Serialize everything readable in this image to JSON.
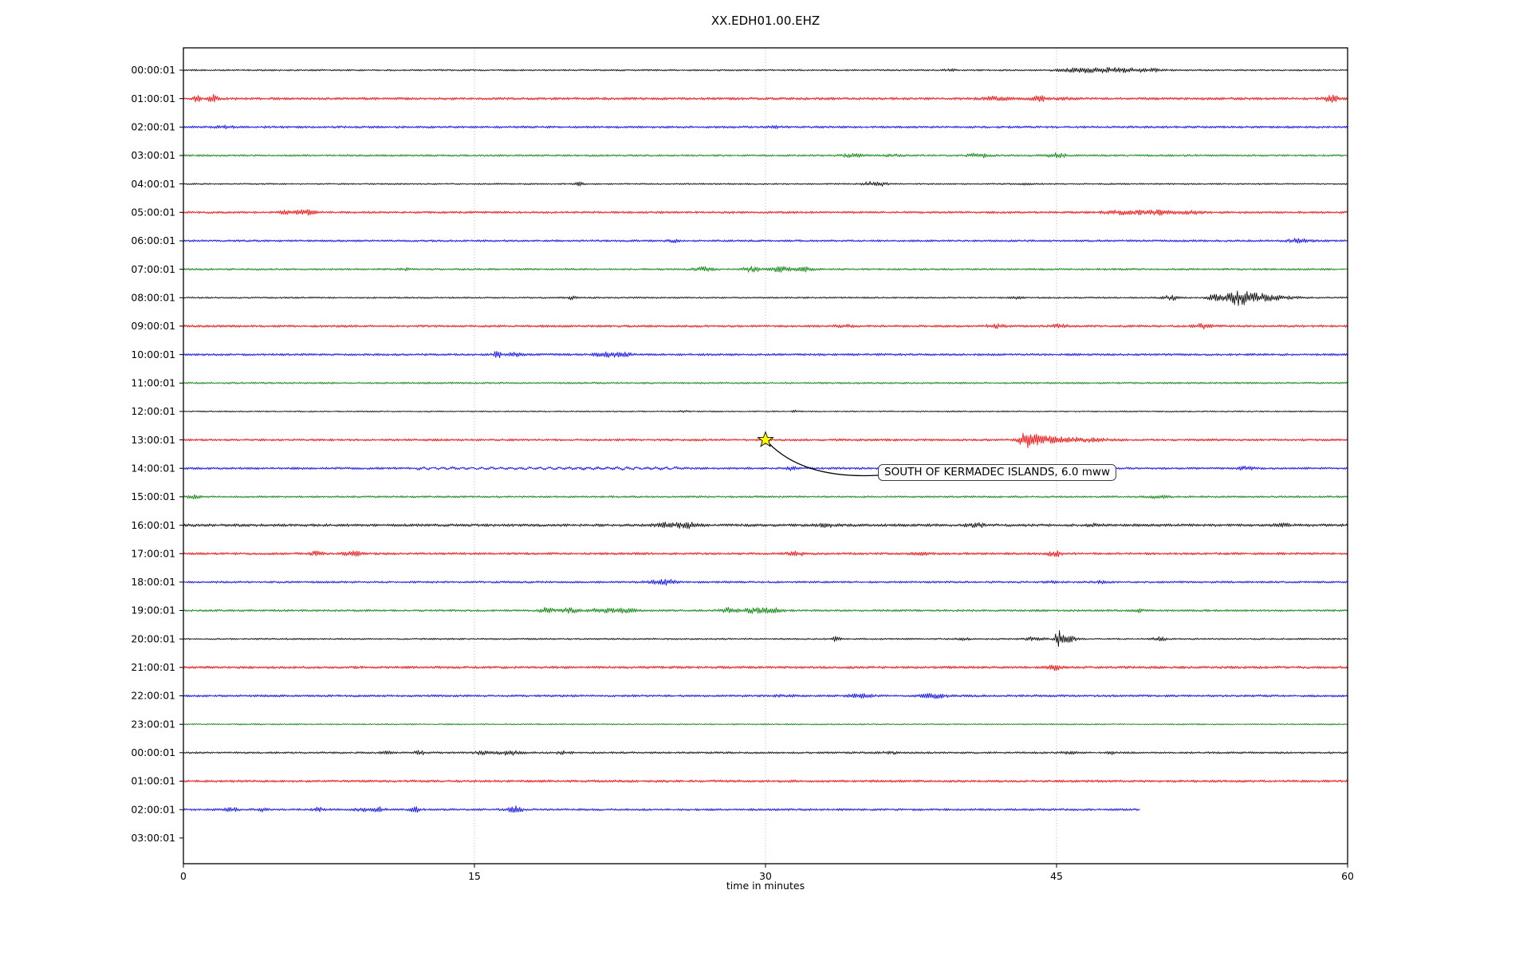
{
  "chart_data": {
    "type": "line",
    "subtype": "seismogram-dayplot",
    "title": "XX.EDH01.00.EHZ",
    "xlabel": "time in minutes",
    "x_range": [
      0,
      60
    ],
    "x_ticks": [
      0,
      15,
      30,
      45,
      60
    ],
    "grid_minutes": [
      15,
      30,
      45
    ],
    "grid_style": "dotted",
    "legend": "none",
    "y_tick_labels": [
      "00:00:01",
      "01:00:01",
      "02:00:01",
      "03:00:01",
      "04:00:01",
      "05:00:01",
      "06:00:01",
      "07:00:01",
      "08:00:01",
      "09:00:01",
      "10:00:01",
      "11:00:01",
      "12:00:01",
      "13:00:01",
      "14:00:01",
      "15:00:01",
      "16:00:01",
      "17:00:01",
      "18:00:01",
      "19:00:01",
      "20:00:01",
      "21:00:01",
      "22:00:01",
      "23:00:01",
      "00:00:01",
      "01:00:01",
      "02:00:01",
      "03:00:01"
    ],
    "colors": {
      "cycle": [
        "#000000",
        "#ff0000",
        "#0000ff",
        "#008000"
      ],
      "grid": "#aaaaaa",
      "frame": "#000000",
      "star_fill": "#ffff00",
      "star_edge": "#000000",
      "connector": "#000000"
    },
    "annotation": {
      "text": "SOUTH OF KERMADEC ISLANDS, 6.0 mww",
      "magnitude": "6.0 mww",
      "row_label": "13:00:01",
      "minute": 30
    },
    "rows": [
      {
        "label": "00:00:01",
        "color": "#000000",
        "base_amp": 1.1,
        "end_min": 60,
        "events": [
          [
            39.5,
            0.2,
            1.2
          ],
          [
            46.2,
            0.8,
            2.2
          ],
          [
            47.6,
            0.7,
            2.0
          ],
          [
            48.9,
            0.6,
            1.8
          ],
          [
            50.0,
            0.4,
            1.3
          ]
        ]
      },
      {
        "label": "01:00:01",
        "color": "#ff0000",
        "base_amp": 1.7,
        "end_min": 60,
        "events": [
          [
            0.7,
            0.12,
            4.5
          ],
          [
            1.5,
            0.15,
            4.5
          ],
          [
            41.8,
            0.5,
            1.8
          ],
          [
            44.1,
            0.25,
            3.2
          ],
          [
            45.3,
            0.2,
            1.5
          ],
          [
            59.2,
            0.25,
            3.5
          ]
        ]
      },
      {
        "label": "02:00:01",
        "color": "#0000ff",
        "base_amp": 1.5,
        "end_min": 60,
        "events": [
          [
            2.2,
            0.4,
            1.2
          ],
          [
            30.5,
            0.3,
            0.8
          ]
        ]
      },
      {
        "label": "03:00:01",
        "color": "#008000",
        "base_amp": 1.3,
        "end_min": 60,
        "events": [
          [
            34.5,
            0.4,
            2.2
          ],
          [
            36.5,
            0.3,
            1.2
          ],
          [
            41.0,
            0.35,
            2.6
          ],
          [
            45.0,
            0.4,
            2.6
          ]
        ]
      },
      {
        "label": "04:00:01",
        "color": "#000000",
        "base_amp": 1.0,
        "end_min": 60,
        "events": [
          [
            20.4,
            0.15,
            2.2
          ],
          [
            35.3,
            0.25,
            2.4
          ],
          [
            36.0,
            0.2,
            2.4
          ],
          [
            43.5,
            0.2,
            1.0
          ]
        ]
      },
      {
        "label": "05:00:01",
        "color": "#ff0000",
        "base_amp": 1.5,
        "end_min": 60,
        "events": [
          [
            5.2,
            0.2,
            1.4
          ],
          [
            6.3,
            0.4,
            2.6
          ],
          [
            48.6,
            0.8,
            2.0
          ],
          [
            50.3,
            0.6,
            2.2
          ],
          [
            52.0,
            0.4,
            1.6
          ]
        ]
      },
      {
        "label": "06:00:01",
        "color": "#0000ff",
        "base_amp": 1.4,
        "end_min": 60,
        "events": [
          [
            25.3,
            0.25,
            1.2
          ],
          [
            57.5,
            0.35,
            2.6
          ]
        ]
      },
      {
        "label": "07:00:01",
        "color": "#008000",
        "base_amp": 1.3,
        "end_min": 60,
        "events": [
          [
            11.5,
            0.2,
            1.2
          ],
          [
            26.8,
            0.35,
            2.2
          ],
          [
            29.3,
            0.3,
            3.0
          ],
          [
            30.8,
            0.35,
            3.0
          ],
          [
            32.0,
            0.3,
            2.2
          ]
        ]
      },
      {
        "label": "08:00:01",
        "color": "#000000",
        "base_amp": 1.1,
        "end_min": 60,
        "events": [
          [
            20.0,
            0.15,
            2.2
          ],
          [
            43.0,
            0.2,
            1.2
          ],
          [
            50.9,
            0.3,
            2.6
          ],
          [
            53.1,
            0.25,
            3.4
          ],
          [
            54.3,
            0.45,
            7.5
          ],
          [
            55.2,
            0.6,
            4.0
          ],
          [
            56.3,
            0.8,
            2.0
          ]
        ]
      },
      {
        "label": "09:00:01",
        "color": "#ff0000",
        "base_amp": 1.5,
        "end_min": 60,
        "events": [
          [
            34.0,
            0.3,
            1.3
          ],
          [
            41.8,
            0.3,
            2.2
          ],
          [
            45.2,
            0.3,
            2.2
          ],
          [
            52.6,
            0.35,
            2.6
          ]
        ]
      },
      {
        "label": "10:00:01",
        "color": "#0000ff",
        "base_amp": 1.5,
        "end_min": 60,
        "events": [
          [
            16.2,
            0.15,
            3.8
          ],
          [
            17.0,
            0.3,
            1.8
          ],
          [
            21.9,
            0.45,
            3.0
          ],
          [
            22.7,
            0.3,
            2.6
          ]
        ]
      },
      {
        "label": "11:00:01",
        "color": "#008000",
        "base_amp": 1.2,
        "end_min": 60,
        "events": []
      },
      {
        "label": "12:00:01",
        "color": "#000000",
        "base_amp": 0.9,
        "end_min": 60,
        "events": [
          [
            25.8,
            0.15,
            1.0
          ],
          [
            31.5,
            0.15,
            1.3
          ]
        ]
      },
      {
        "label": "13:00:01",
        "color": "#ff0000",
        "base_amp": 1.5,
        "end_min": 60,
        "events": [
          [
            43.4,
            0.25,
            7.0
          ],
          [
            44.0,
            0.4,
            4.5
          ],
          [
            45.0,
            0.7,
            2.6
          ],
          [
            46.5,
            0.9,
            1.6
          ]
        ]
      },
      {
        "label": "14:00:01",
        "color": "#0000ff",
        "base_amp": 1.5,
        "end_min": 60,
        "events": [
          [
            31.3,
            0.2,
            2.2
          ],
          [
            44.6,
            0.2,
            1.3
          ],
          [
            54.8,
            0.3,
            1.8
          ]
        ],
        "wave": {
          "from": 12,
          "to": 25.5,
          "amp": 0.9,
          "period": 0.5
        }
      },
      {
        "label": "15:00:01",
        "color": "#008000",
        "base_amp": 1.3,
        "end_min": 60,
        "events": [
          [
            0.5,
            0.25,
            1.8
          ],
          [
            50.3,
            0.3,
            2.2
          ]
        ]
      },
      {
        "label": "16:00:01",
        "color": "#000000",
        "base_amp": 1.8,
        "end_min": 60,
        "events": [
          [
            24.8,
            0.35,
            2.6
          ],
          [
            25.9,
            0.4,
            3.0
          ],
          [
            33.2,
            0.3,
            1.6
          ],
          [
            40.9,
            0.4,
            1.8
          ],
          [
            47.0,
            0.3,
            1.3
          ],
          [
            56.6,
            0.3,
            1.6
          ]
        ]
      },
      {
        "label": "17:00:01",
        "color": "#ff0000",
        "base_amp": 1.6,
        "end_min": 60,
        "events": [
          [
            6.9,
            0.25,
            2.2
          ],
          [
            8.7,
            0.3,
            2.6
          ],
          [
            31.6,
            0.4,
            1.6
          ],
          [
            38.0,
            0.3,
            1.3
          ],
          [
            44.9,
            0.25,
            3.0
          ]
        ]
      },
      {
        "label": "18:00:01",
        "color": "#0000ff",
        "base_amp": 1.4,
        "end_min": 60,
        "events": [
          [
            24.3,
            0.3,
            1.8
          ],
          [
            25.0,
            0.25,
            3.4
          ],
          [
            44.6,
            0.2,
            1.3
          ],
          [
            47.3,
            0.2,
            1.3
          ]
        ]
      },
      {
        "label": "19:00:01",
        "color": "#008000",
        "base_amp": 1.4,
        "end_min": 60,
        "events": [
          [
            18.7,
            0.25,
            3.0
          ],
          [
            19.9,
            0.3,
            2.6
          ],
          [
            21.6,
            0.5,
            2.2
          ],
          [
            22.8,
            0.4,
            2.2
          ],
          [
            28.0,
            0.3,
            2.6
          ],
          [
            29.3,
            0.5,
            2.6
          ],
          [
            30.4,
            0.35,
            3.0
          ],
          [
            49.2,
            0.2,
            1.8
          ]
        ]
      },
      {
        "label": "20:00:01",
        "color": "#000000",
        "base_amp": 1.1,
        "end_min": 60,
        "events": [
          [
            33.6,
            0.15,
            2.8
          ],
          [
            40.2,
            0.2,
            1.2
          ],
          [
            43.8,
            0.4,
            1.8
          ],
          [
            45.1,
            0.15,
            9.0
          ],
          [
            45.6,
            0.3,
            3.5
          ],
          [
            50.3,
            0.3,
            2.2
          ]
        ]
      },
      {
        "label": "21:00:01",
        "color": "#ff0000",
        "base_amp": 1.7,
        "end_min": 60,
        "events": [
          [
            44.9,
            0.2,
            3.5
          ]
        ]
      },
      {
        "label": "22:00:01",
        "color": "#0000ff",
        "base_amp": 1.5,
        "end_min": 60,
        "events": [
          [
            31.0,
            0.3,
            1.3
          ],
          [
            34.9,
            0.4,
            2.2
          ],
          [
            38.7,
            0.5,
            2.2
          ]
        ]
      },
      {
        "label": "23:00:01",
        "color": "#008000",
        "base_amp": 0.9,
        "end_min": 60,
        "events": []
      },
      {
        "label": "00:00:01",
        "color": "#000000",
        "base_amp": 1.3,
        "end_min": 60,
        "events": [
          [
            10.5,
            0.2,
            1.8
          ],
          [
            12.2,
            0.2,
            2.2
          ],
          [
            15.4,
            0.25,
            1.8
          ],
          [
            16.8,
            0.45,
            2.2
          ],
          [
            19.6,
            0.25,
            1.8
          ],
          [
            36.4,
            0.3,
            1.3
          ],
          [
            45.6,
            0.3,
            1.8
          ],
          [
            47.9,
            0.2,
            1.4
          ]
        ]
      },
      {
        "label": "01:00:01",
        "color": "#ff0000",
        "base_amp": 1.6,
        "end_min": 60,
        "events": []
      },
      {
        "label": "02:00:01",
        "color": "#0000ff",
        "base_amp": 1.5,
        "end_min": 49.3,
        "events": [
          [
            2.4,
            0.25,
            2.2
          ],
          [
            4.0,
            0.2,
            1.8
          ],
          [
            6.9,
            0.25,
            2.2
          ],
          [
            9.2,
            0.25,
            1.8
          ],
          [
            10.1,
            0.25,
            2.2
          ],
          [
            11.9,
            0.25,
            2.6
          ],
          [
            17.1,
            0.25,
            3.4
          ]
        ]
      }
    ]
  }
}
